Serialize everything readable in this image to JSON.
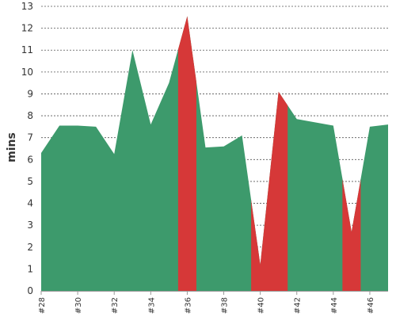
{
  "chart_data": {
    "type": "area",
    "title": "",
    "xlabel": "",
    "ylabel": "mins",
    "x_tick_labels": [
      "#28",
      "#30",
      "#32",
      "#34",
      "#36",
      "#38",
      "#40",
      "#42",
      "#44",
      "#46"
    ],
    "ylim": [
      0,
      13
    ],
    "y_ticks": [
      0,
      1,
      2,
      3,
      4,
      5,
      6,
      7,
      8,
      9,
      10,
      11,
      12,
      13
    ],
    "grid": "horizontal dashed",
    "colors": {
      "normal": "#3d9a6c",
      "highlight": "#d63838",
      "grid": "#555555",
      "text": "#333333"
    },
    "series": [
      {
        "x": [
          28,
          29,
          30,
          31,
          32,
          33,
          34,
          35,
          36,
          37,
          38,
          39,
          40,
          41,
          42,
          43,
          44,
          45,
          46,
          47
        ],
        "values": [
          6.3,
          7.55,
          7.55,
          7.5,
          6.25,
          11.0,
          7.6,
          9.5,
          12.55,
          6.55,
          6.6,
          7.1,
          1.2,
          9.1,
          7.85,
          7.7,
          7.55,
          2.7,
          7.5,
          7.6
        ],
        "highlighted_bands": [
          [
            35.5,
            36.5
          ],
          [
            39.5,
            41.5
          ],
          [
            44.5,
            45.5
          ]
        ]
      }
    ]
  }
}
